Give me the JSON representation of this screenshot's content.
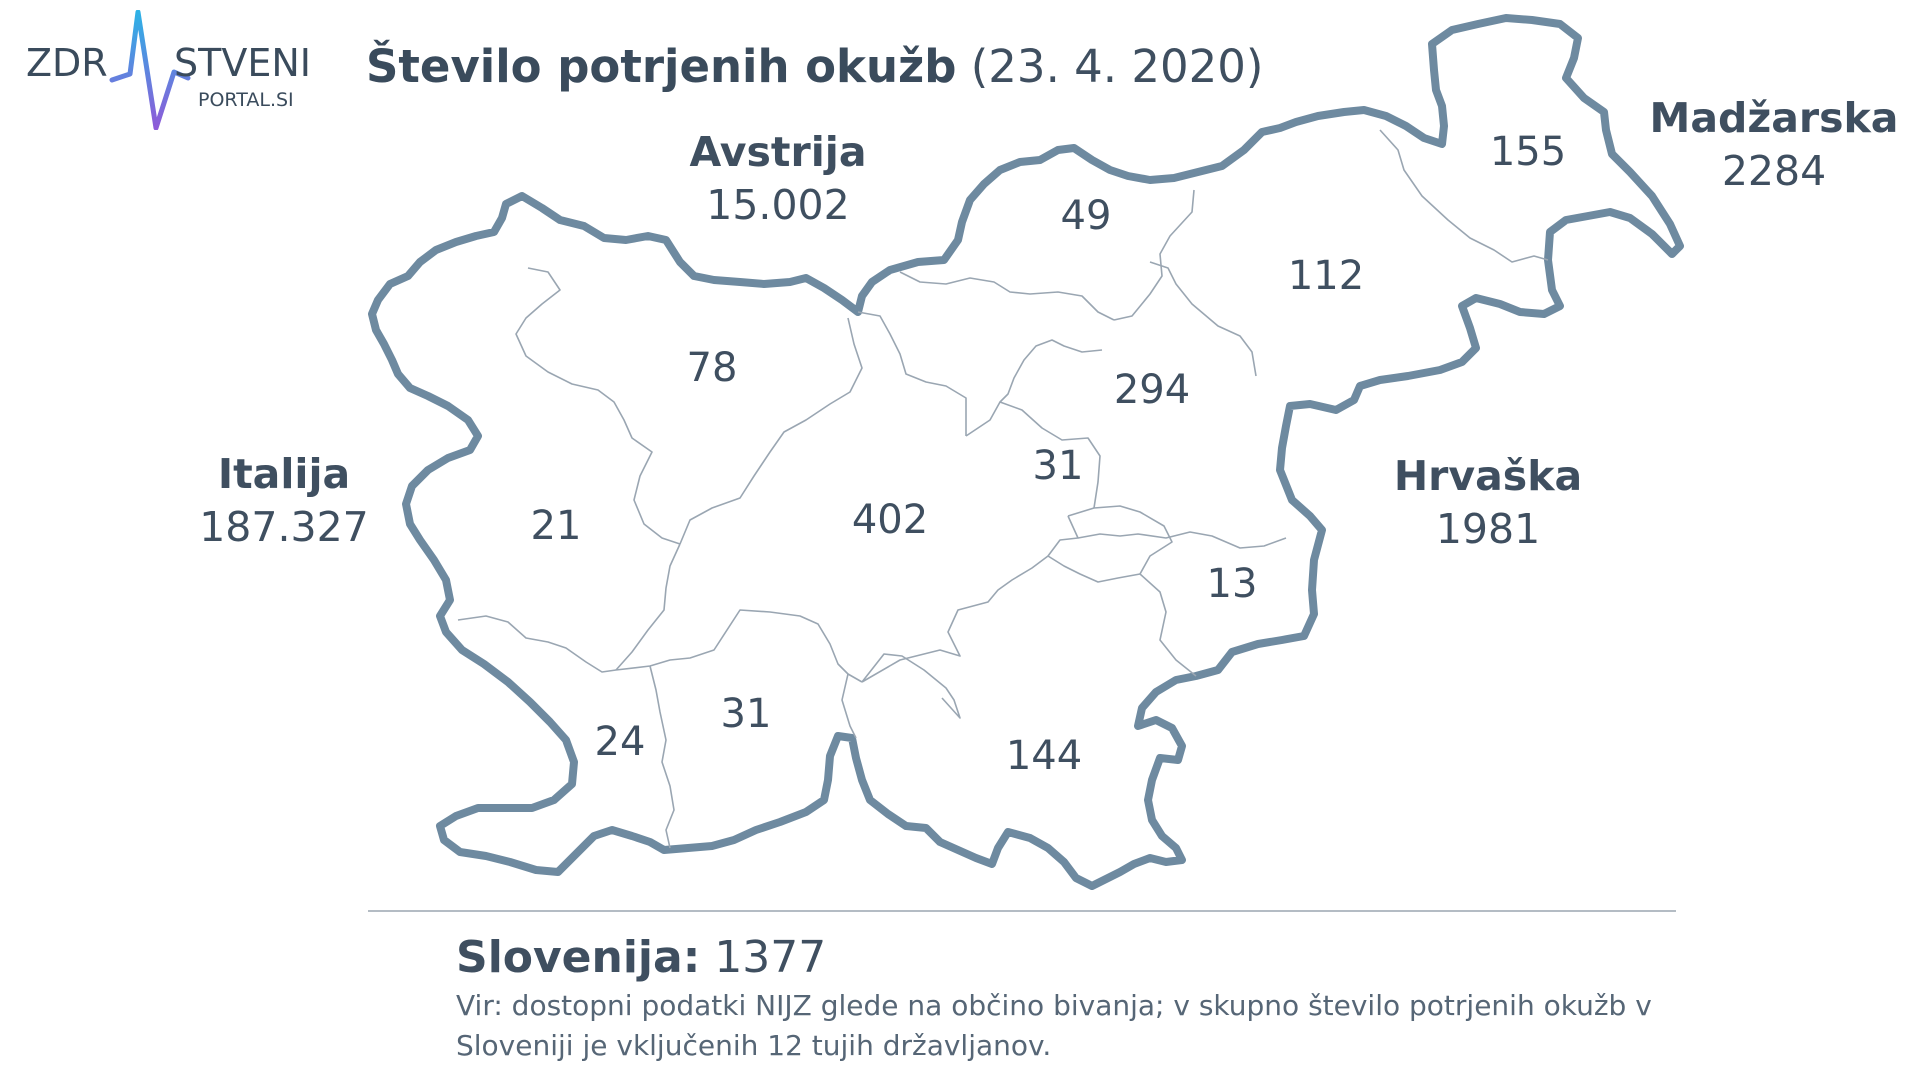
{
  "logo": {
    "text_left": "ZDR",
    "text_right": "STVENI",
    "subtext": "PORTAL.SI",
    "accent_colors": [
      "#2db2e6",
      "#8e5ad8"
    ]
  },
  "title": {
    "bold": "Število potrjenih okužb",
    "date": "(23. 4. 2020)"
  },
  "map": {
    "border_color": "#6e8aa0",
    "neighbours": [
      {
        "id": "austria",
        "name": "Avstrija",
        "value": "15.002"
      },
      {
        "id": "hungary",
        "name": "Madžarska",
        "value": "2284"
      },
      {
        "id": "italy",
        "name": "Italija",
        "value": "187.327"
      },
      {
        "id": "croatia",
        "name": "Hrvaška",
        "value": "1981"
      }
    ],
    "regions": [
      {
        "id": "gorenjska",
        "value": "78"
      },
      {
        "id": "koroska",
        "value": "49"
      },
      {
        "id": "podravska",
        "value": "112"
      },
      {
        "id": "pomurska",
        "value": "155"
      },
      {
        "id": "savinjska",
        "value": "294"
      },
      {
        "id": "zasavska",
        "value": "31"
      },
      {
        "id": "osrednjeslovenska",
        "value": "402"
      },
      {
        "id": "goriska",
        "value": "21"
      },
      {
        "id": "posavska",
        "value": "13"
      },
      {
        "id": "obalno-kraska",
        "value": "24"
      },
      {
        "id": "primorsko-notranjska",
        "value": "31"
      },
      {
        "id": "jugovzhodna",
        "value": "144"
      }
    ]
  },
  "footer": {
    "total_label": "Slovenija:",
    "total_value": "1377",
    "note": "Vir: dostopni podatki NIJZ glede na občino bivanja; v skupno število potrjenih okužb v Sloveniji je vključenih 12 tujih državljanov."
  }
}
